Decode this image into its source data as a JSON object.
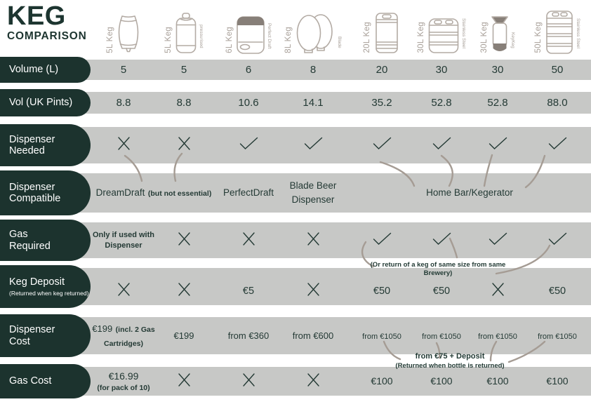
{
  "title": {
    "line1": "KEG",
    "line2": "COMPARISON"
  },
  "columns": [
    {
      "label": "5L Keg",
      "sub": "",
      "icon": "cask-keg-icon"
    },
    {
      "label": "5L Keg",
      "sub": "pressurised",
      "icon": "mini-keg-icon"
    },
    {
      "label": "6L Keg",
      "sub": "Perfect Draft",
      "icon": "perfectdraft-keg-icon"
    },
    {
      "label": "8L Keg",
      "sub": "Blade",
      "icon": "blade-keg-icon"
    },
    {
      "label": "20L Keg",
      "sub": "",
      "icon": "steel-keg-icon"
    },
    {
      "label": "30L Keg",
      "sub": "Stainless Steel",
      "icon": "steel-keg-wide-icon"
    },
    {
      "label": "30L Keg",
      "sub": "KeyKeg",
      "icon": "keykeg-icon"
    },
    {
      "label": "50L Keg",
      "sub": "Stainless Steel",
      "icon": "steel-keg-tall-icon"
    }
  ],
  "rows": [
    {
      "id": "volume",
      "label": "Volume (L)",
      "cells": [
        {
          "text": "5"
        },
        {
          "text": "5"
        },
        {
          "text": "6"
        },
        {
          "text": "8"
        },
        {
          "text": "20"
        },
        {
          "text": "30"
        },
        {
          "text": "30"
        },
        {
          "text": "50"
        }
      ]
    },
    {
      "id": "pints",
      "label": "Vol (UK Pints)",
      "cells": [
        {
          "text": "8.8"
        },
        {
          "text": "8.8"
        },
        {
          "text": "10.6"
        },
        {
          "text": "14.1"
        },
        {
          "text": "35.2"
        },
        {
          "text": "52.8"
        },
        {
          "text": "52.8"
        },
        {
          "text": "88.0"
        }
      ]
    },
    {
      "id": "dispenser-needed",
      "label": "Dispenser Needed",
      "cells": [
        {
          "mark": "x"
        },
        {
          "mark": "x"
        },
        {
          "mark": "check"
        },
        {
          "mark": "check"
        },
        {
          "mark": "check"
        },
        {
          "mark": "check"
        },
        {
          "mark": "check"
        },
        {
          "mark": "check"
        }
      ]
    },
    {
      "id": "dispenser-compatible",
      "label": "Dispenser\nCompatible",
      "merged": [
        {
          "cols": [
            0,
            1
          ],
          "text": "DreamDraft",
          "small": "(but not essential)"
        },
        {
          "cols": [
            2,
            2
          ],
          "text": "PerfectDraft"
        },
        {
          "cols": [
            3,
            3
          ],
          "text": "Blade Beer Dispenser"
        },
        {
          "cols": [
            4,
            7
          ],
          "text": "Home Bar/Kegerator"
        }
      ]
    },
    {
      "id": "gas-required",
      "label": "Gas\nRequired",
      "cells": [
        {
          "text": "Only if used with Dispenser",
          "emph": true
        },
        {
          "mark": "x"
        },
        {
          "mark": "x"
        },
        {
          "mark": "x"
        },
        {
          "mark": "check"
        },
        {
          "mark": "check"
        },
        {
          "mark": "check"
        },
        {
          "mark": "check"
        }
      ]
    },
    {
      "id": "keg-deposit",
      "label": "Keg Deposit",
      "sublabel": "(Returned when keg returned)",
      "cells": [
        {
          "mark": "x"
        },
        {
          "mark": "x"
        },
        {
          "text": "€5"
        },
        {
          "mark": "x"
        },
        {
          "text": "€50"
        },
        {
          "text": "€50"
        },
        {
          "mark": "x"
        },
        {
          "text": "€50"
        }
      ]
    },
    {
      "id": "dispenser-cost",
      "label": "Dispenser\nCost",
      "cells": [
        {
          "text": "€199",
          "small": "(incl. 2 Gas Cartridges)"
        },
        {
          "text": "€199"
        },
        {
          "text": "from €360"
        },
        {
          "text": "from €600"
        },
        {
          "text": "from €1050"
        },
        {
          "text": "from €1050"
        },
        {
          "text": "from €1050"
        },
        {
          "text": "from €1050"
        }
      ]
    },
    {
      "id": "gas-cost",
      "label": "Gas Cost",
      "cells": [
        {
          "text": "€16.99",
          "small": "(for pack of 10)",
          "stack": true
        },
        {
          "mark": "x"
        },
        {
          "mark": "x"
        },
        {
          "mark": "x"
        },
        {
          "text": "€100"
        },
        {
          "text": "€100"
        },
        {
          "text": "€100"
        },
        {
          "text": "€100"
        }
      ]
    }
  ],
  "annotations": [
    {
      "id": "deposit-note",
      "lines": [
        "(Or return of a keg of same size from same",
        "Brewery)"
      ]
    },
    {
      "id": "keykeg-deposit-note",
      "lines": [
        "from €75 + Deposit",
        "(Returned when bottle is returned)"
      ]
    }
  ],
  "colors": {
    "dark_green": "#1c332e",
    "band_gray": "#c7c8c6",
    "text_dark": "#243a35",
    "keg_line": "#b3aba4",
    "keg_fill": "#877f78",
    "connector": "#a59c94"
  },
  "chart_data": {
    "type": "table",
    "title": "KEG COMPARISON",
    "columns": [
      "5L Keg",
      "5L Keg (pressurised)",
      "6L Keg (Perfect Draft)",
      "8L Keg (Blade)",
      "20L Keg",
      "30L Keg (Stainless Steel)",
      "30L Keg (KeyKeg)",
      "50L Keg (Stainless Steel)"
    ],
    "rows": [
      {
        "label": "Volume (L)",
        "values": [
          5,
          5,
          6,
          8,
          20,
          30,
          30,
          50
        ]
      },
      {
        "label": "Vol (UK Pints)",
        "values": [
          8.8,
          8.8,
          10.6,
          14.1,
          35.2,
          52.8,
          52.8,
          88.0
        ]
      },
      {
        "label": "Dispenser Needed",
        "values": [
          "no",
          "no",
          "yes",
          "yes",
          "yes",
          "yes",
          "yes",
          "yes"
        ]
      },
      {
        "label": "Dispenser Compatible",
        "values": [
          "DreamDraft (but not essential)",
          "DreamDraft (but not essential)",
          "PerfectDraft",
          "Blade Beer Dispenser",
          "Home Bar/Kegerator",
          "Home Bar/Kegerator",
          "Home Bar/Kegerator",
          "Home Bar/Kegerator"
        ]
      },
      {
        "label": "Gas Required",
        "values": [
          "Only if used with Dispenser",
          "no",
          "no",
          "no",
          "yes",
          "yes",
          "yes",
          "yes"
        ]
      },
      {
        "label": "Keg Deposit (Returned when keg returned)",
        "values": [
          "no",
          "no",
          "€5",
          "no",
          "€50",
          "€50",
          "no",
          "€50"
        ]
      },
      {
        "label": "Dispenser Cost",
        "values": [
          "€199 (incl. 2 Gas Cartridges)",
          "€199",
          "from €360",
          "from €600",
          "from €1050",
          "from €1050",
          "from €1050",
          "from €1050"
        ]
      },
      {
        "label": "Gas Cost",
        "values": [
          "€16.99 (for pack of 10)",
          "no",
          "no",
          "no",
          "€100",
          "€100",
          "€100",
          "€100"
        ]
      }
    ],
    "notes": [
      "(Or return of a keg of same size from same Brewery)",
      "from €75 + Deposit (Returned when bottle is returned)"
    ]
  }
}
